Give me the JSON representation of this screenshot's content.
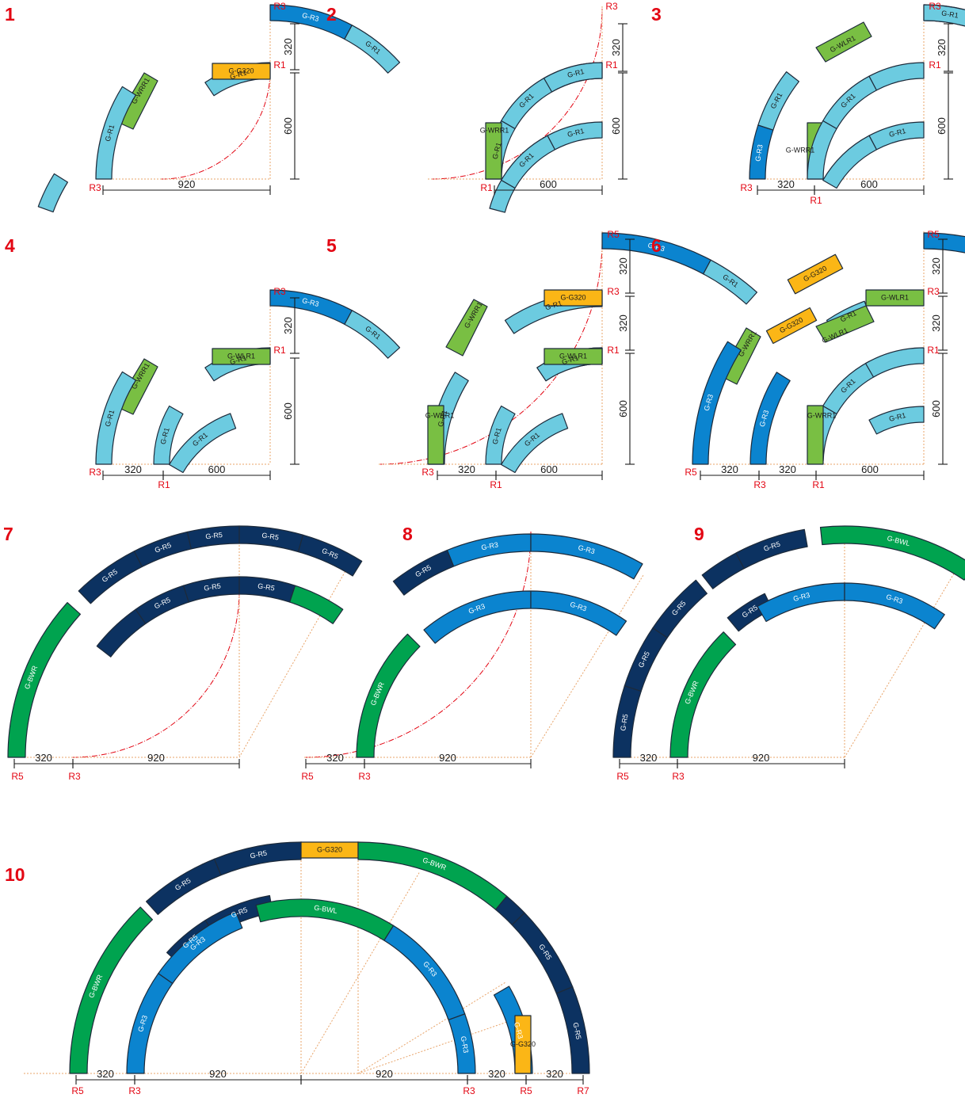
{
  "colors": {
    "G-R1": "#6ccbe0",
    "G-R3": "#0b84cf",
    "G-R5": "#0c3261",
    "G-WRR1": "#79bf43",
    "G-WLR1": "#79bf43",
    "G-BWR": "#00a34f",
    "G-BWL": "#00a34f",
    "G-G320": "#fbb616",
    "accent": "#e30613"
  },
  "figures": [
    {
      "number": "1",
      "tracks": [
        "G-R3",
        "G-R1",
        "G-WRR1",
        "G-R1",
        "G-R1",
        "G-G320",
        "G-R1"
      ],
      "radius_labels": [
        "R3",
        "R1",
        "R3"
      ],
      "dimensions": [
        "320",
        "600",
        "920"
      ]
    },
    {
      "number": "2",
      "tracks": [
        "G-R1",
        "G-R1",
        "G-R1",
        "G-WRR1",
        "G-R1",
        "G-R1",
        "G-R1"
      ],
      "radius_labels": [
        "R3",
        "R1",
        "R1"
      ],
      "dimensions": [
        "320",
        "600",
        "600"
      ]
    },
    {
      "number": "3",
      "tracks": [
        "G-R1",
        "G-WLR1",
        "G-R1",
        "G-R3",
        "G-R1",
        "G-R1",
        "G-R1",
        "G-WRR1",
        "G-R1"
      ],
      "radius_labels": [
        "R3",
        "R1",
        "R3",
        "R1"
      ],
      "dimensions": [
        "320",
        "600",
        "320",
        "600"
      ]
    },
    {
      "number": "4",
      "tracks": [
        "G-R3",
        "G-R1",
        "G-WRR1",
        "G-R1",
        "G-R1",
        "G-WLR1",
        "G-R1",
        "G-R1"
      ],
      "radius_labels": [
        "R3",
        "R1",
        "R3",
        "R1"
      ],
      "dimensions": [
        "320",
        "600",
        "320",
        "600"
      ]
    },
    {
      "number": "5",
      "tracks": [
        "G-R3",
        "G-R1",
        "G-WRR1",
        "G-R1",
        "G-G320",
        "G-R1",
        "G-R1",
        "G-WRR1",
        "G-R1",
        "G-WLR1",
        "G-R1",
        "G-R1"
      ],
      "radius_labels": [
        "R5",
        "R3",
        "R1",
        "R3",
        "R1"
      ],
      "dimensions": [
        "320",
        "320",
        "600",
        "320",
        "600"
      ]
    },
    {
      "number": "6",
      "tracks": [
        "G-R3",
        "G-G320",
        "G-R1",
        "G-WRR1",
        "G-G320",
        "G-R1",
        "G-WLR1",
        "G-R3",
        "G-WLR1",
        "G-R1",
        "G-R3",
        "G-R1",
        "G-R1",
        "G-WRR1",
        "G-R1"
      ],
      "radius_labels": [
        "R5",
        "R3",
        "R1",
        "R5",
        "R3",
        "R1"
      ],
      "dimensions": [
        "320",
        "320",
        "600",
        "320",
        "320",
        "600"
      ]
    },
    {
      "number": "7",
      "tracks": [
        "G-R5",
        "G-R5",
        "G-R5",
        "G-R5",
        "G-R5",
        "G-R5",
        "G-R5",
        "G-R5",
        "G-R5",
        "G-BWR"
      ],
      "radius_labels": [
        "R5",
        "R3"
      ],
      "dimensions": [
        "320",
        "920"
      ]
    },
    {
      "number": "8",
      "tracks": [
        "G-R3",
        "G-R3",
        "G-R5",
        "G-R3",
        "G-R3",
        "G-BWR"
      ],
      "radius_labels": [
        "R5",
        "R3"
      ],
      "dimensions": [
        "320",
        "920"
      ]
    },
    {
      "number": "9",
      "tracks": [
        "G-BWL",
        "G-R5",
        "G-R5",
        "G-R3",
        "G-R3",
        "G-R5",
        "G-R5",
        "G-R5",
        "G-R5",
        "G-BWR"
      ],
      "radius_labels": [
        "R5",
        "R3"
      ],
      "dimensions": [
        "320",
        "920"
      ]
    },
    {
      "number": "10",
      "tracks": [
        "G-R5",
        "G-R5",
        "G-G320",
        "G-BWR",
        "G-R5",
        "G-R5",
        "G-BWL",
        "G-R3",
        "G-R3",
        "G-BWR",
        "G-R3",
        "G-R3",
        "G-R3",
        "G-R5",
        "G-R5",
        "G-R5",
        "G-G320"
      ],
      "radius_labels": [
        "R5",
        "R3",
        "R3",
        "R5",
        "R7"
      ],
      "dimensions": [
        "320",
        "920",
        "920",
        "320",
        "320"
      ]
    }
  ]
}
